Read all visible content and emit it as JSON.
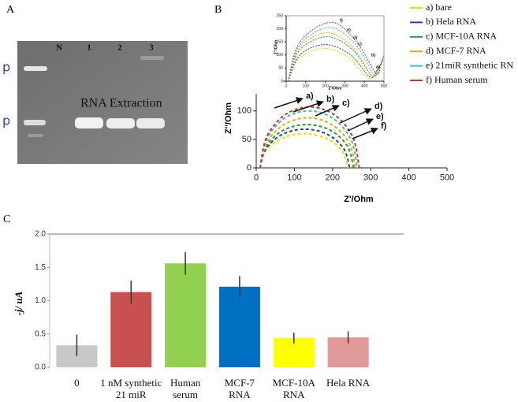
{
  "panels": [
    "A",
    "B",
    "C"
  ],
  "gel": {
    "lanes": [
      "N",
      "1",
      "2",
      "3"
    ],
    "markers": [
      "p",
      "p"
    ],
    "annotation": "RNA Extraction"
  },
  "chart_data": [
    {
      "type": "line",
      "xlabel": "Z'/Ohm",
      "ylabel": "Z''/Ohm",
      "xlim": [
        0,
        500
      ],
      "ylim": [
        0,
        130
      ],
      "xticks": [
        0,
        100,
        200,
        300,
        400,
        500
      ],
      "yticks": [
        0,
        50,
        100
      ],
      "annotations": [
        "a)",
        "b)",
        "c)",
        "d)",
        "e)",
        "f)"
      ],
      "series": [
        {
          "name": "a) bare",
          "color": "#e8e000",
          "x": [
            10,
            25,
            68,
            125,
            183,
            225,
            240
          ],
          "values": [
            0,
            30,
            52,
            60,
            52,
            30,
            0
          ]
        },
        {
          "name": "b) Hela RNA",
          "color": "#2f3f9f",
          "x": [
            10,
            26,
            69,
            128,
            186,
            229,
            245
          ],
          "values": [
            0,
            34,
            59,
            68,
            59,
            34,
            0
          ]
        },
        {
          "name": "c) MCF-10A RNA",
          "color": "#1e9e3a",
          "x": [
            10,
            26,
            71,
            133,
            194,
            239,
            255
          ],
          "values": [
            0,
            38,
            66,
            76,
            66,
            38,
            0
          ]
        },
        {
          "name": "d) MCF-7 RNA",
          "color": "#e0b000",
          "x": [
            10,
            27,
            73,
            135,
            198,
            243,
            260
          ],
          "values": [
            0,
            44,
            76,
            88,
            76,
            44,
            0
          ]
        },
        {
          "name": "e) 21miR synthetic RN",
          "color": "#3fb8d8",
          "x": [
            10,
            27,
            74,
            138,
            201,
            248,
            265
          ],
          "values": [
            0,
            50,
            87,
            100,
            87,
            50,
            0
          ]
        },
        {
          "name": "f) Human serum",
          "color": "#c0392b",
          "x": [
            10,
            27,
            75,
            140,
            205,
            253,
            270
          ],
          "values": [
            0,
            54,
            93,
            107,
            93,
            54,
            0
          ]
        }
      ]
    },
    {
      "type": "line",
      "xlabel": "Z'/Ohm",
      "ylabel": "Z''/Ohm",
      "xlim": [
        0,
        500
      ],
      "ylim": [
        0,
        250
      ],
      "xticks": [
        0,
        100,
        200,
        300,
        400,
        500
      ],
      "yticks": [
        0,
        50,
        100,
        150,
        200,
        250
      ],
      "annotations": [
        "a)",
        "b)",
        "c)",
        "d)",
        "e)",
        "f)"
      ],
      "series": [
        {
          "color": "#e8e000",
          "x": [
            10,
            70,
            200,
            320,
            420,
            460,
            480
          ],
          "values": [
            0,
            90,
            125,
            90,
            10,
            40,
            60
          ]
        },
        {
          "color": "#2f3f9f",
          "x": [
            10,
            70,
            200,
            330,
            430,
            470,
            490
          ],
          "values": [
            0,
            100,
            140,
            100,
            15,
            50,
            70
          ]
        },
        {
          "color": "#1e9e3a",
          "x": [
            10,
            70,
            210,
            340,
            440,
            475,
            495
          ],
          "values": [
            0,
            120,
            170,
            120,
            20,
            55,
            80
          ]
        },
        {
          "color": "#e0b000",
          "x": [
            10,
            70,
            210,
            340,
            440,
            475,
            495
          ],
          "values": [
            0,
            130,
            185,
            130,
            20,
            55,
            85
          ]
        },
        {
          "color": "#3fb8d8",
          "x": [
            10,
            70,
            220,
            350,
            450,
            480,
            500
          ],
          "values": [
            0,
            140,
            205,
            145,
            25,
            60,
            95
          ]
        },
        {
          "color": "#c0392b",
          "x": [
            10,
            70,
            230,
            360,
            460,
            485,
            500
          ],
          "values": [
            0,
            150,
            225,
            150,
            30,
            70,
            100
          ]
        }
      ]
    },
    {
      "type": "bar",
      "ylabel": "-j/ uA",
      "categories": [
        "0",
        "1 nM synthetic\n21 miR",
        "Human\nserum",
        "MCF-7\nRNA",
        "MCF-10A\nRNA",
        "Hela RNA"
      ],
      "values": [
        0.33,
        1.13,
        1.56,
        1.21,
        0.44,
        0.45
      ],
      "errors": [
        0.16,
        0.17,
        0.17,
        0.16,
        0.08,
        0.09
      ],
      "colors": [
        "#c8c8c8",
        "#c8504f",
        "#92d050",
        "#0070c0",
        "#ffff00",
        "#e09a9a"
      ],
      "ylim": [
        0,
        2
      ],
      "yticks": [
        {
          "value": 0,
          "label": "0.0"
        },
        {
          "value": 0.5,
          "label": "0.5"
        },
        {
          "value": 1,
          "label": "1.0"
        },
        {
          "value": 1.5,
          "label": "1.5"
        },
        {
          "value": 2,
          "label": "2.0"
        }
      ]
    }
  ]
}
